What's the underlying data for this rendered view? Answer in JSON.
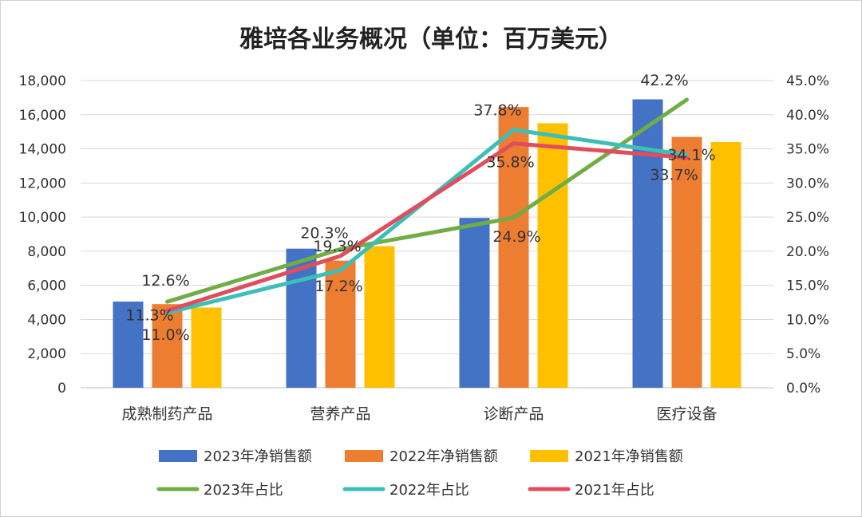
{
  "chart_data": {
    "type": "bar",
    "title": "雅培各业务概况（单位：百万美元）",
    "categories": [
      "成熟制药产品",
      "营养产品",
      "诊断产品",
      "医疗设备"
    ],
    "ylim": [
      0,
      18000
    ],
    "y_ticks": [
      "0",
      "2,000",
      "4,000",
      "6,000",
      "8,000",
      "10,000",
      "12,000",
      "14,000",
      "16,000",
      "18,000"
    ],
    "y2lim": [
      0,
      45
    ],
    "y2_ticks": [
      "0.0%",
      "5.0%",
      "10.0%",
      "15.0%",
      "20.0%",
      "25.0%",
      "30.0%",
      "35.0%",
      "40.0%",
      "45.0%"
    ],
    "bar_series": [
      {
        "name": "2023年净销售额",
        "color": "#4472C4",
        "values": [
          5050,
          8150,
          9950,
          16900
        ]
      },
      {
        "name": "2022年净销售额",
        "color": "#ED7D31",
        "values": [
          4900,
          7450,
          16450,
          14700
        ]
      },
      {
        "name": "2021年净销售额",
        "color": "#FFC000",
        "values": [
          4700,
          8300,
          15500,
          14400
        ]
      }
    ],
    "line_series": [
      {
        "name": "2023年占比",
        "color": "#70AD47",
        "values": [
          12.6,
          20.3,
          24.9,
          42.2
        ],
        "labels": [
          "12.6%",
          "20.3%",
          "24.9%",
          "42.2%"
        ]
      },
      {
        "name": "2022年占比",
        "color": "#3BBFB8",
        "values": [
          11.0,
          17.2,
          37.8,
          34.1
        ],
        "labels": [
          "11.0%",
          "17.2%",
          "37.8%",
          "34.1%"
        ]
      },
      {
        "name": "2021年占比",
        "color": "#E04E5E",
        "values": [
          11.3,
          19.3,
          35.8,
          33.7
        ],
        "labels": [
          "11.3%",
          "19.3%",
          "35.8%",
          "33.7%"
        ]
      }
    ],
    "legend_position": "bottom",
    "grid": true
  }
}
